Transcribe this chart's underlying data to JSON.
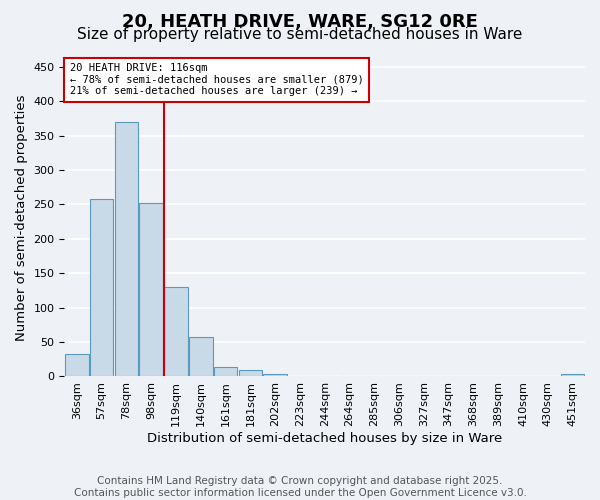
{
  "title": "20, HEATH DRIVE, WARE, SG12 0RE",
  "subtitle": "Size of property relative to semi-detached houses in Ware",
  "xlabel": "Distribution of semi-detached houses by size in Ware",
  "ylabel": "Number of semi-detached properties",
  "bin_labels": [
    "36sqm",
    "57sqm",
    "78sqm",
    "98sqm",
    "119sqm",
    "140sqm",
    "161sqm",
    "181sqm",
    "202sqm",
    "223sqm",
    "244sqm",
    "264sqm",
    "285sqm",
    "306sqm",
    "327sqm",
    "347sqm",
    "368sqm",
    "389sqm",
    "410sqm",
    "430sqm",
    "451sqm"
  ],
  "bar_heights": [
    33,
    258,
    370,
    252,
    130,
    57,
    14,
    10,
    4,
    0,
    0,
    0,
    0,
    0,
    0,
    0,
    0,
    0,
    0,
    0,
    3
  ],
  "bar_color": "#c8d9e8",
  "bar_edge_color": "#5a9abf",
  "property_line_color": "#cc0000",
  "annotation_title": "20 HEATH DRIVE: 116sqm",
  "annotation_line2": "← 78% of semi-detached houses are smaller (879)",
  "annotation_line3": "21% of semi-detached houses are larger (239) →",
  "annotation_box_color": "#cc0000",
  "annotation_bg": "#ffffff",
  "ylim": [
    0,
    460
  ],
  "footer_line1": "Contains HM Land Registry data © Crown copyright and database right 2025.",
  "footer_line2": "Contains public sector information licensed under the Open Government Licence v3.0.",
  "bg_color": "#eef2f7",
  "grid_color": "#ffffff",
  "title_fontsize": 13,
  "subtitle_fontsize": 11,
  "axis_label_fontsize": 9.5,
  "tick_fontsize": 8,
  "footer_fontsize": 7.5,
  "vline_x_index": 3.5
}
